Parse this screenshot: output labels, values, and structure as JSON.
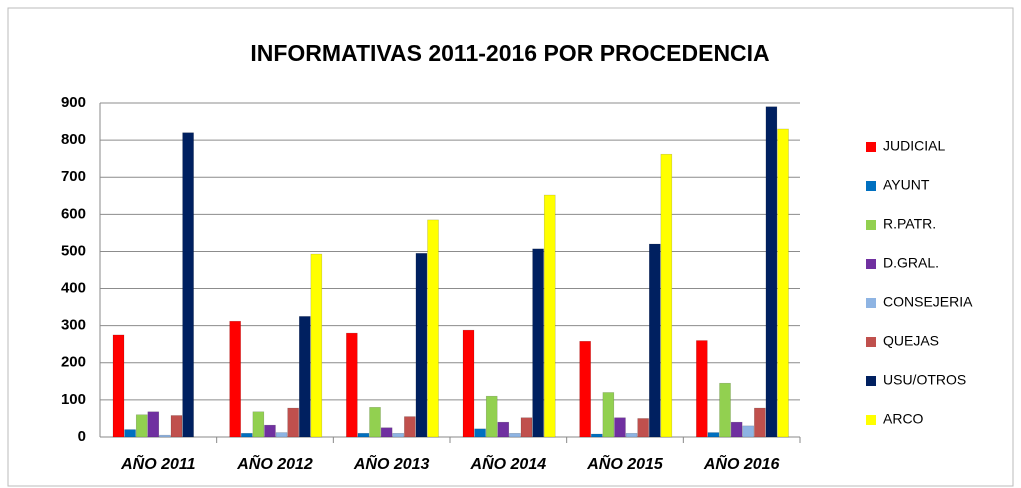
{
  "chart_data": {
    "type": "bar",
    "title": "INFORMATIVAS 2011-2016 POR PROCEDENCIA",
    "categories": [
      "AÑO 2011",
      "AÑO 2012",
      "AÑO 2013",
      "AÑO 2014",
      "AÑO 2015",
      "AÑO 2016"
    ],
    "series": [
      {
        "name": "JUDICIAL",
        "color": "#ff0000",
        "values": [
          275,
          312,
          280,
          288,
          258,
          260
        ]
      },
      {
        "name": "AYUNT",
        "color": "#0070c0",
        "values": [
          20,
          10,
          10,
          22,
          8,
          12
        ]
      },
      {
        "name": "R.PATR.",
        "color": "#92d050",
        "values": [
          60,
          68,
          80,
          110,
          120,
          145
        ]
      },
      {
        "name": "D.GRAL.",
        "color": "#7030a0",
        "values": [
          68,
          32,
          25,
          40,
          52,
          40
        ]
      },
      {
        "name": "CONSEJERIA",
        "color": "#8eb4e3",
        "values": [
          5,
          12,
          10,
          10,
          10,
          30
        ]
      },
      {
        "name": "QUEJAS",
        "color": "#c0504d",
        "values": [
          58,
          78,
          55,
          52,
          50,
          78
        ]
      },
      {
        "name": "USU/OTROS",
        "color": "#002060",
        "values": [
          820,
          325,
          495,
          507,
          520,
          890
        ]
      },
      {
        "name": "ARCO",
        "color": "#ffff00",
        "values": [
          0,
          493,
          585,
          652,
          762,
          830
        ]
      }
    ],
    "ylim": [
      0,
      900
    ],
    "yticks": [
      0,
      100,
      200,
      300,
      400,
      500,
      600,
      700,
      800,
      900
    ],
    "grid": true,
    "legend": "right"
  }
}
